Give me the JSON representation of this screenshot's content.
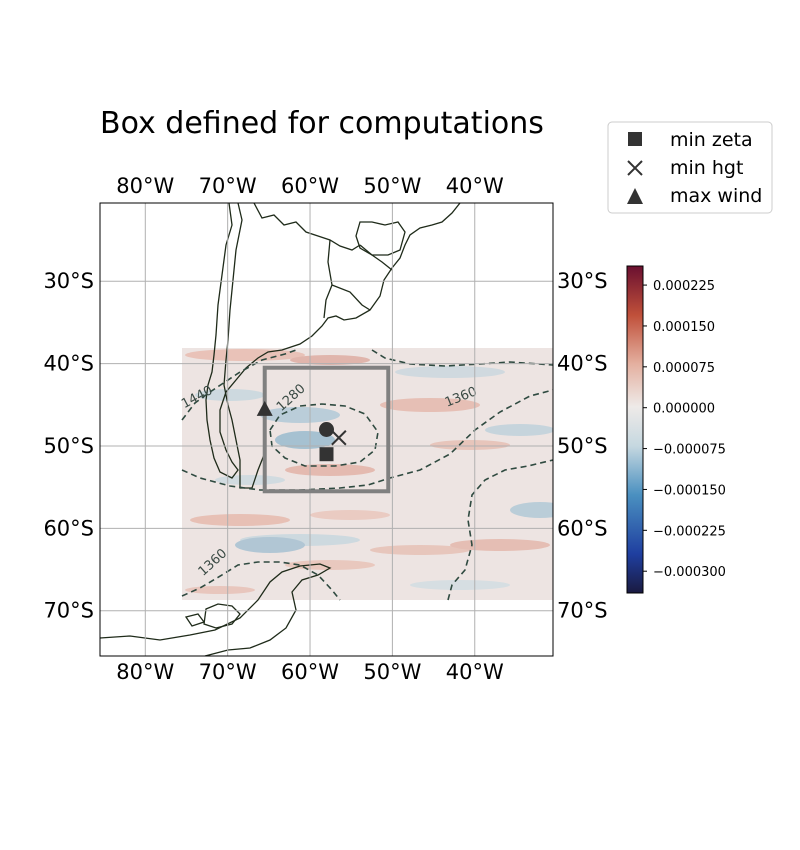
{
  "chart_data": {
    "type": "map",
    "title": "Box defined for computations",
    "projection": "PlateCarree",
    "extent": {
      "lon": [
        -85.5,
        -30.5
      ],
      "lat": [
        -75.5,
        -20.5
      ]
    },
    "field_extent": {
      "lon": [
        -75.5,
        -30.5
      ],
      "lat": [
        -68.5,
        -38
      ]
    },
    "lon_ticks": [
      "80°W",
      "70°W",
      "60°W",
      "50°W",
      "40°W"
    ],
    "lon_tick_values": [
      -80,
      -70,
      -60,
      -50,
      -40
    ],
    "lat_ticks": [
      "30°S",
      "40°S",
      "50°S",
      "60°S",
      "70°S"
    ],
    "lat_tick_values": [
      -30,
      -40,
      -50,
      -60,
      -70
    ],
    "grid": true,
    "computation_box": {
      "lon": [
        -65.5,
        -50.5
      ],
      "lat": [
        -55.5,
        -40.5
      ]
    },
    "markers": [
      {
        "label": "min zeta",
        "symbol": "square",
        "lon": -58,
        "lat": -51
      },
      {
        "label": "min hgt",
        "symbol": "x",
        "lon": -56.5,
        "lat": -49
      },
      {
        "label": "max wind",
        "symbol": "triangle",
        "lon": -65.5,
        "lat": -45.5
      },
      {
        "label": "",
        "symbol": "circle",
        "lon": -58,
        "lat": -48
      }
    ],
    "contour_labels": [
      "1440",
      "1280",
      "1360",
      "1360"
    ],
    "contour_label_positions": [
      {
        "lon": -73.5,
        "lat": -44.5,
        "angle": -28
      },
      {
        "lon": -62,
        "lat": -44.5,
        "angle": -42
      },
      {
        "lon": -41.5,
        "lat": -44.5,
        "angle": -22
      },
      {
        "lon": -71.5,
        "lat": -64.5,
        "angle": -42
      }
    ],
    "colorbar": {
      "min": -0.00034,
      "max": 0.00026,
      "ticks": [
        0.000225,
        0.00015,
        7.5e-05,
        0.0,
        -7.5e-05,
        -0.00015,
        -0.000225,
        -0.0003
      ],
      "tick_labels": [
        "0.000225",
        "0.000150",
        "0.000075",
        "0.000000",
        "−0.000075",
        "−0.000150",
        "−0.000225",
        "−0.000300"
      ],
      "colormap": "blue-white-red (diverging)"
    },
    "legend": {
      "position": "top-right",
      "entries": [
        "min zeta",
        "min hgt",
        "max wind"
      ]
    }
  },
  "colors": {
    "coast": "#1f2b1a",
    "grid": "#b0b0b0",
    "contour": "#2f4a40",
    "box": "#808080",
    "marker": "#333333"
  }
}
